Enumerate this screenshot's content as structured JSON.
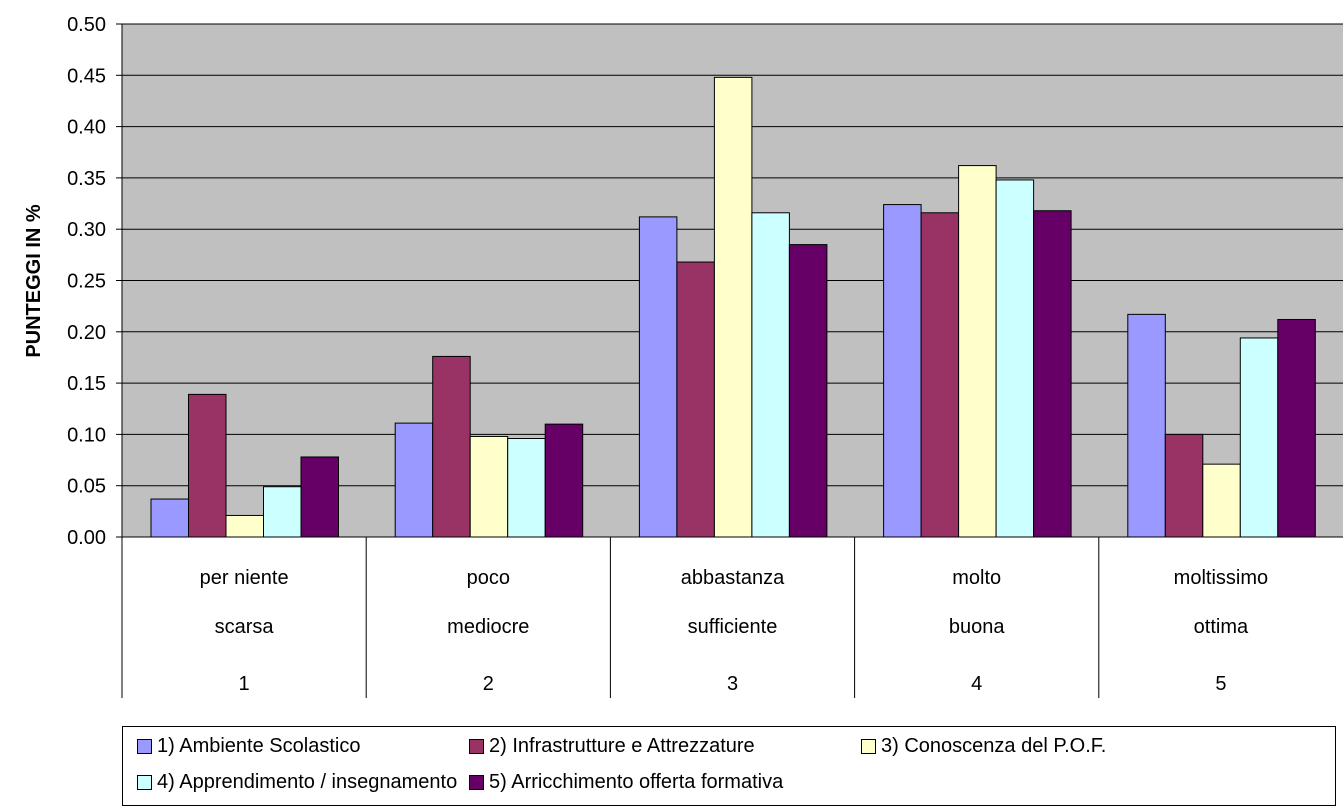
{
  "chart_data": {
    "type": "bar",
    "ylabel": "PUNTEGGI IN %",
    "ylim": [
      0,
      0.5
    ],
    "yticks": [
      "0.00",
      "0.05",
      "0.10",
      "0.15",
      "0.20",
      "0.25",
      "0.30",
      "0.35",
      "0.40",
      "0.45",
      "0.50"
    ],
    "grid": true,
    "legend_position": "bottom",
    "categories": [
      [
        "per niente",
        "scarsa",
        "1"
      ],
      [
        "poco",
        "mediocre",
        "2"
      ],
      [
        "abbastanza",
        "sufficiente",
        "3"
      ],
      [
        "molto",
        "buona",
        "4"
      ],
      [
        "moltissimo",
        "ottima",
        "5"
      ]
    ],
    "series": [
      {
        "name": "1) Ambiente Scolastico",
        "color": "#9999ff",
        "values": [
          0.037,
          0.111,
          0.312,
          0.324,
          0.217
        ]
      },
      {
        "name": "2) Infrastrutture e Attrezzature",
        "color": "#993366",
        "values": [
          0.139,
          0.176,
          0.268,
          0.316,
          0.1
        ]
      },
      {
        "name": "3) Conoscenza del P.O.F.",
        "color": "#ffffcc",
        "values": [
          0.021,
          0.098,
          0.448,
          0.362,
          0.071
        ]
      },
      {
        "name": "4) Apprendimento / insegnamento",
        "color": "#ccffff",
        "values": [
          0.049,
          0.096,
          0.316,
          0.348,
          0.194
        ]
      },
      {
        "name": "5) Arricchimento offerta formativa",
        "color": "#660066",
        "values": [
          0.078,
          0.11,
          0.285,
          0.318,
          0.212
        ]
      }
    ],
    "plot_background": "#c0c0c0"
  }
}
